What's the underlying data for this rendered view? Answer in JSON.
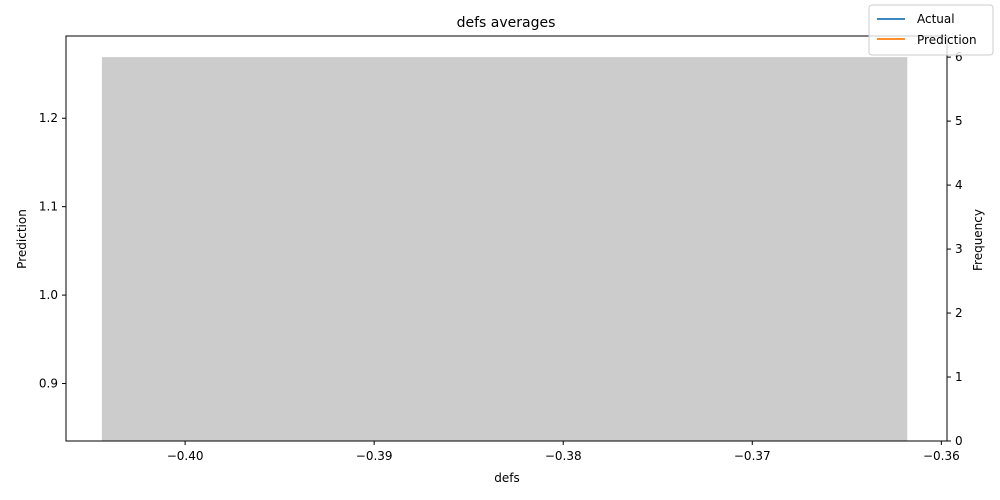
{
  "chart_data": {
    "type": "bar",
    "title": "defs averages",
    "xlabel": "defs",
    "ylabel": "Prediction",
    "y2label": "Frequency",
    "xlim": [
      -0.4063,
      -0.3597
    ],
    "ylim": [
      0.835,
      1.293
    ],
    "y2lim": [
      0,
      6.33
    ],
    "x_ticks": [
      -0.4,
      -0.39,
      -0.38,
      -0.37,
      -0.36
    ],
    "x_tick_labels": [
      "−0.40",
      "−0.39",
      "−0.38",
      "−0.37",
      "−0.36"
    ],
    "y_ticks": [
      0.9,
      1.0,
      1.1,
      1.2
    ],
    "y_tick_labels": [
      "0.9",
      "1.0",
      "1.1",
      "1.2"
    ],
    "y2_ticks": [
      0,
      1,
      2,
      3,
      4,
      5,
      6
    ],
    "y2_tick_labels": [
      "0",
      "1",
      "2",
      "3",
      "4",
      "5",
      "6"
    ],
    "histogram": {
      "x_start": -0.4044,
      "x_end": -0.3618,
      "frequency": 6,
      "color": "#cccccc"
    },
    "series": [
      {
        "name": "Actual",
        "color": "#1f77b4",
        "values": []
      },
      {
        "name": "Prediction",
        "color": "#ff7f0e",
        "values": []
      }
    ],
    "legend_position": "top-right",
    "grid": false
  }
}
